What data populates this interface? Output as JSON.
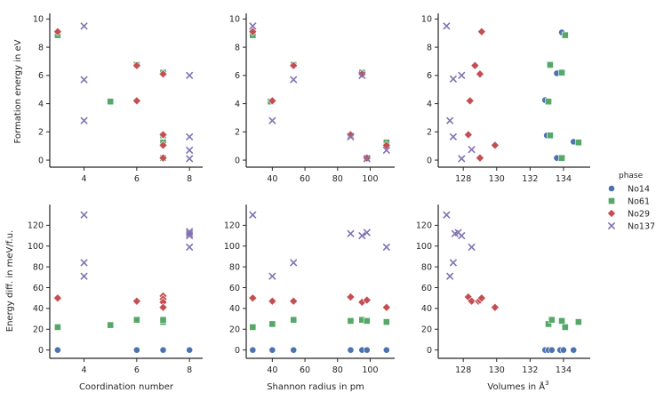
{
  "series_styles": {
    "No14": {
      "color": "#4c72b0",
      "marker": "circle"
    },
    "No61": {
      "color": "#55a868",
      "marker": "square"
    },
    "No29": {
      "color": "#c44e52",
      "marker": "diamond"
    },
    "No137": {
      "color": "#8172b2",
      "marker": "x"
    }
  },
  "legend": {
    "title": "phase",
    "entries": [
      "No14",
      "No61",
      "No29",
      "No137"
    ]
  },
  "axes_text": {
    "ylabel_top": "Formation energy in eV",
    "ylabel_bottom": "Energy diff. in meV/f.u.",
    "xlabel_col1": "Coordination number",
    "xlabel_col2": "Shannon radius in pm",
    "xlabel_col3_base": "Volumes in Å",
    "xlabel_col3_sup": "3"
  },
  "chart_data": [
    {
      "id": "top-coordination",
      "type": "scatter",
      "xlabel": "",
      "ylabel": "Formation energy in eV",
      "xlim": [
        2.7,
        8.5
      ],
      "ylim": [
        -0.5,
        10.4
      ],
      "xticks": [
        4,
        6,
        8
      ],
      "yticks": [
        0,
        2,
        4,
        6,
        8,
        10
      ],
      "series": [
        {
          "name": "No14",
          "points": []
        },
        {
          "name": "No61",
          "points": [
            [
              3,
              8.85
            ],
            [
              5,
              4.15
            ],
            [
              6,
              6.75
            ],
            [
              7,
              6.2
            ],
            [
              7,
              1.25
            ],
            [
              7,
              1.75
            ],
            [
              7,
              0.15
            ]
          ]
        },
        {
          "name": "No29",
          "points": [
            [
              3,
              9.1
            ],
            [
              6,
              6.7
            ],
            [
              6,
              4.2
            ],
            [
              7,
              6.1
            ],
            [
              7,
              1.8
            ],
            [
              7,
              1.05
            ],
            [
              7,
              0.15
            ]
          ]
        },
        {
          "name": "No137",
          "points": [
            [
              4,
              9.5
            ],
            [
              4,
              5.7
            ],
            [
              4,
              2.8
            ],
            [
              8,
              6.0
            ],
            [
              8,
              1.65
            ],
            [
              8,
              0.7
            ],
            [
              8,
              0.1
            ]
          ]
        }
      ]
    },
    {
      "id": "top-shannon",
      "type": "scatter",
      "xlabel": "",
      "ylabel": "",
      "xlim": [
        24,
        115
      ],
      "ylim": [
        -0.5,
        10.4
      ],
      "xticks": [
        40,
        60,
        80,
        100
      ],
      "yticks": [
        0,
        2,
        4,
        6,
        8,
        10
      ],
      "series": [
        {
          "name": "No14",
          "points": []
        },
        {
          "name": "No61",
          "points": [
            [
              28,
              8.85
            ],
            [
              39,
              4.15
            ],
            [
              53,
              6.75
            ],
            [
              95,
              6.2
            ],
            [
              110,
              1.25
            ],
            [
              88,
              1.75
            ],
            [
              98,
              0.15
            ]
          ]
        },
        {
          "name": "No29",
          "points": [
            [
              28,
              9.1
            ],
            [
              53,
              6.7
            ],
            [
              40,
              4.2
            ],
            [
              95,
              6.1
            ],
            [
              88,
              1.8
            ],
            [
              110,
              1.05
            ],
            [
              98,
              0.15
            ]
          ]
        },
        {
          "name": "No137",
          "points": [
            [
              28,
              9.5
            ],
            [
              53,
              5.7
            ],
            [
              40,
              2.8
            ],
            [
              95,
              6.0
            ],
            [
              88,
              1.65
            ],
            [
              110,
              0.7
            ],
            [
              98,
              0.1
            ]
          ]
        }
      ]
    },
    {
      "id": "top-volume",
      "type": "scatter",
      "xlabel": "",
      "ylabel": "",
      "xlim": [
        126.5,
        135.6
      ],
      "ylim": [
        -0.5,
        10.4
      ],
      "xticks": [
        128,
        130,
        132,
        134
      ],
      "yticks": [
        0,
        2,
        4,
        6,
        8,
        10
      ],
      "series": [
        {
          "name": "No14",
          "points": [
            [
              133.9,
              9.05
            ],
            [
              133.6,
              6.15
            ],
            [
              132.9,
              4.25
            ],
            [
              133.0,
              1.75
            ],
            [
              134.6,
              1.3
            ],
            [
              133.6,
              0.15
            ]
          ]
        },
        {
          "name": "No61",
          "points": [
            [
              134.1,
              8.85
            ],
            [
              133.2,
              6.75
            ],
            [
              133.9,
              6.2
            ],
            [
              133.1,
              4.15
            ],
            [
              133.2,
              1.75
            ],
            [
              134.9,
              1.25
            ],
            [
              133.9,
              0.15
            ]
          ]
        },
        {
          "name": "No29",
          "points": [
            [
              129.1,
              9.1
            ],
            [
              128.7,
              6.7
            ],
            [
              129.0,
              6.1
            ],
            [
              128.4,
              4.2
            ],
            [
              128.3,
              1.8
            ],
            [
              129.9,
              1.05
            ],
            [
              129.0,
              0.15
            ]
          ]
        },
        {
          "name": "No137",
          "points": [
            [
              127.0,
              9.5
            ],
            [
              127.4,
              5.75
            ],
            [
              127.9,
              6.0
            ],
            [
              127.2,
              2.8
            ],
            [
              127.4,
              1.65
            ],
            [
              128.5,
              0.75
            ],
            [
              127.9,
              0.1
            ]
          ]
        }
      ]
    },
    {
      "id": "bottom-coordination",
      "type": "scatter",
      "xlabel": "Coordination number",
      "ylabel": "Energy diff. in meV/f.u.",
      "xlim": [
        2.7,
        8.5
      ],
      "ylim": [
        -8,
        140
      ],
      "xticks": [
        4,
        6,
        8
      ],
      "yticks": [
        0,
        20,
        40,
        60,
        80,
        100,
        120
      ],
      "series": [
        {
          "name": "No14",
          "points": [
            [
              3,
              0
            ],
            [
              6,
              0
            ],
            [
              7,
              0
            ],
            [
              8,
              0
            ]
          ]
        },
        {
          "name": "No61",
          "points": [
            [
              3,
              22
            ],
            [
              5,
              24
            ],
            [
              6,
              29
            ],
            [
              7,
              27
            ],
            [
              7,
              29
            ]
          ]
        },
        {
          "name": "No29",
          "points": [
            [
              3,
              50
            ],
            [
              6,
              47
            ],
            [
              7,
              52
            ],
            [
              7,
              49
            ],
            [
              7,
              46
            ],
            [
              7,
              41
            ]
          ]
        },
        {
          "name": "No137",
          "points": [
            [
              4,
              130
            ],
            [
              4,
              84
            ],
            [
              4,
              71
            ],
            [
              8,
              114
            ],
            [
              8,
              112
            ],
            [
              8,
              110
            ],
            [
              8,
              99
            ]
          ]
        }
      ]
    },
    {
      "id": "bottom-shannon",
      "type": "scatter",
      "xlabel": "Shannon radius in pm",
      "ylabel": "",
      "xlim": [
        24,
        115
      ],
      "ylim": [
        -8,
        140
      ],
      "xticks": [
        40,
        60,
        80,
        100
      ],
      "yticks": [
        0,
        20,
        40,
        60,
        80,
        100,
        120
      ],
      "series": [
        {
          "name": "No14",
          "points": [
            [
              28,
              0
            ],
            [
              40,
              0
            ],
            [
              53,
              0
            ],
            [
              88,
              0
            ],
            [
              95,
              0
            ],
            [
              98,
              0
            ],
            [
              110,
              0
            ]
          ]
        },
        {
          "name": "No61",
          "points": [
            [
              28,
              22
            ],
            [
              40,
              25
            ],
            [
              53,
              29
            ],
            [
              88,
              28
            ],
            [
              95,
              29
            ],
            [
              98,
              28
            ],
            [
              110,
              27
            ]
          ]
        },
        {
          "name": "No29",
          "points": [
            [
              28,
              50
            ],
            [
              40,
              47
            ],
            [
              53,
              47
            ],
            [
              88,
              51
            ],
            [
              95,
              46
            ],
            [
              98,
              48
            ],
            [
              110,
              41
            ]
          ]
        },
        {
          "name": "No137",
          "points": [
            [
              28,
              130
            ],
            [
              40,
              71
            ],
            [
              53,
              84
            ],
            [
              88,
              112
            ],
            [
              95,
              110
            ],
            [
              98,
              113
            ],
            [
              110,
              99
            ]
          ]
        }
      ]
    },
    {
      "id": "bottom-volume",
      "type": "scatter",
      "xlabel": "Volumes in Å3",
      "ylabel": "",
      "xlim": [
        126.5,
        135.6
      ],
      "ylim": [
        -8,
        140
      ],
      "xticks": [
        128,
        130,
        132,
        134
      ],
      "yticks": [
        0,
        20,
        40,
        60,
        80,
        100,
        120
      ],
      "series": [
        {
          "name": "No14",
          "points": [
            [
              132.9,
              0
            ],
            [
              133.1,
              0
            ],
            [
              133.3,
              0
            ],
            [
              133.8,
              0
            ],
            [
              134.0,
              0
            ],
            [
              134.6,
              0
            ]
          ]
        },
        {
          "name": "No61",
          "points": [
            [
              133.1,
              25
            ],
            [
              133.3,
              29
            ],
            [
              133.9,
              28
            ],
            [
              134.1,
              22
            ],
            [
              134.9,
              27
            ]
          ]
        },
        {
          "name": "No29",
          "points": [
            [
              128.3,
              51
            ],
            [
              128.5,
              47
            ],
            [
              128.9,
              47
            ],
            [
              129.0,
              48
            ],
            [
              129.1,
              50
            ],
            [
              129.9,
              41
            ]
          ]
        },
        {
          "name": "No137",
          "points": [
            [
              127.0,
              130
            ],
            [
              127.2,
              71
            ],
            [
              127.4,
              84
            ],
            [
              127.5,
              112
            ],
            [
              127.7,
              113
            ],
            [
              127.9,
              110
            ],
            [
              128.5,
              99
            ]
          ]
        }
      ]
    }
  ]
}
